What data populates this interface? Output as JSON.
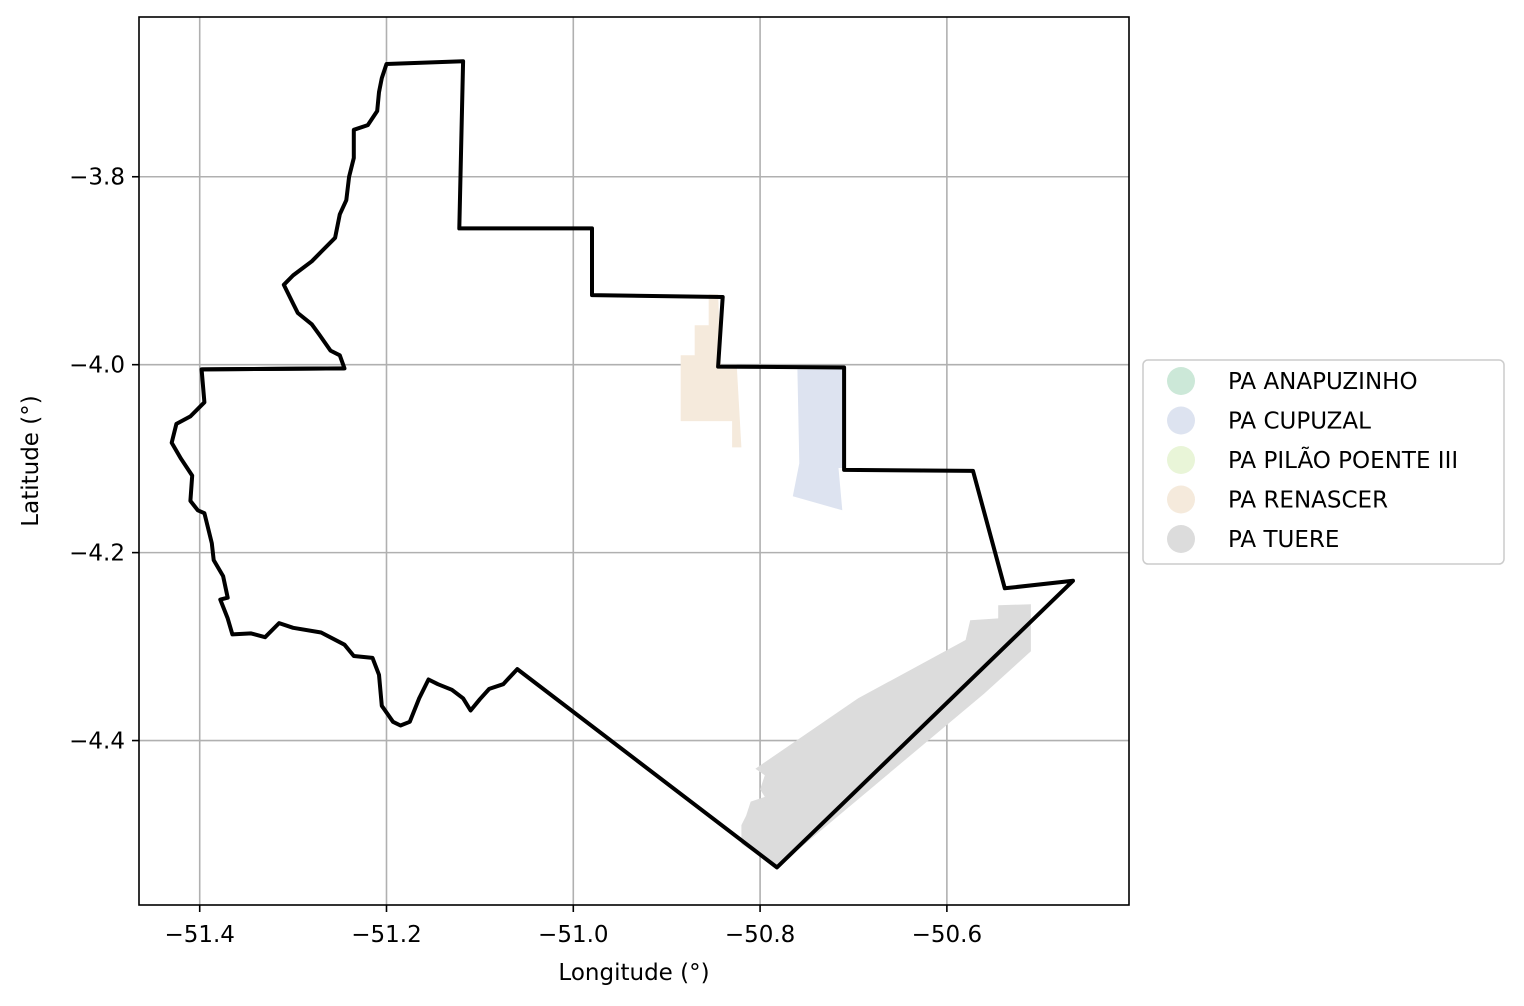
{
  "chart_data": {
    "type": "map",
    "xlabel": "Longitude (°)",
    "ylabel": "Latitude (°)",
    "xlim": [
      -51.465,
      -50.405
    ],
    "ylim": [
      -4.575,
      -3.63
    ],
    "grid": true,
    "x_ticks": [
      {
        "value": -51.4,
        "label": "−51.4"
      },
      {
        "value": -51.2,
        "label": "−51.2"
      },
      {
        "value": -51.0,
        "label": "−51.0"
      },
      {
        "value": -50.8,
        "label": "−50.8"
      },
      {
        "value": -50.6,
        "label": "−50.6"
      }
    ],
    "y_ticks": [
      {
        "value": -3.8,
        "label": "−3.8"
      },
      {
        "value": -4.0,
        "label": "−4.0"
      },
      {
        "value": -4.2,
        "label": "−4.2"
      },
      {
        "value": -4.4,
        "label": "−4.4"
      }
    ],
    "legend": {
      "placement": "center-right outside",
      "entries": [
        {
          "name": "PA ANAPUZINHO",
          "color": "#cce8d8"
        },
        {
          "name": "PA CUPUZAL",
          "color": "#dde3f0"
        },
        {
          "name": "PA PILÃO POENTE III",
          "color": "#e9f5d8"
        },
        {
          "name": "PA RENASCER",
          "color": "#f5eadc"
        },
        {
          "name": "PA TUERE",
          "color": "#dcdcdc"
        }
      ]
    },
    "regions": [
      {
        "name": "PA RENASCER",
        "color": "#f5eadc",
        "coords": [
          [
            -50.855,
            -3.925
          ],
          [
            -50.845,
            -3.925
          ],
          [
            -50.842,
            -4.0
          ],
          [
            -50.825,
            -4.0
          ],
          [
            -50.82,
            -4.088
          ],
          [
            -50.83,
            -4.088
          ],
          [
            -50.83,
            -4.06
          ],
          [
            -50.885,
            -4.06
          ],
          [
            -50.885,
            -3.99
          ],
          [
            -50.87,
            -3.99
          ],
          [
            -50.87,
            -3.958
          ],
          [
            -50.855,
            -3.958
          ]
        ]
      },
      {
        "name": "PA CUPUZAL",
        "color": "#dde3f0",
        "coords": [
          [
            -50.76,
            -4.005
          ],
          [
            -50.71,
            -4.005
          ],
          [
            -50.71,
            -4.11
          ],
          [
            -50.716,
            -4.11
          ],
          [
            -50.712,
            -4.155
          ],
          [
            -50.765,
            -4.14
          ],
          [
            -50.758,
            -4.105
          ]
        ]
      },
      {
        "name": "PA TUERE",
        "color": "#dcdcdc",
        "coords": [
          [
            -50.51,
            -4.255
          ],
          [
            -50.545,
            -4.256
          ],
          [
            -50.545,
            -4.27
          ],
          [
            -50.575,
            -4.272
          ],
          [
            -50.58,
            -4.293
          ],
          [
            -50.695,
            -4.355
          ],
          [
            -50.805,
            -4.43
          ],
          [
            -50.795,
            -4.437
          ],
          [
            -50.8,
            -4.452
          ],
          [
            -50.795,
            -4.46
          ],
          [
            -50.81,
            -4.465
          ],
          [
            -50.815,
            -4.48
          ],
          [
            -50.82,
            -4.49
          ],
          [
            -50.82,
            -4.51
          ],
          [
            -50.782,
            -4.535
          ],
          [
            -50.56,
            -4.35
          ],
          [
            -50.51,
            -4.305
          ]
        ]
      }
    ],
    "boundary": [
      [
        -51.2,
        -3.68
      ],
      [
        -51.118,
        -3.677
      ],
      [
        -51.122,
        -3.855
      ],
      [
        -50.98,
        -3.855
      ],
      [
        -50.98,
        -3.926
      ],
      [
        -50.84,
        -3.928
      ],
      [
        -50.845,
        -4.002
      ],
      [
        -50.71,
        -4.003
      ],
      [
        -50.71,
        -4.112
      ],
      [
        -50.572,
        -4.113
      ],
      [
        -50.538,
        -4.238
      ],
      [
        -50.465,
        -4.23
      ],
      [
        -50.782,
        -4.535
      ],
      [
        -51.06,
        -4.324
      ],
      [
        -51.075,
        -4.34
      ],
      [
        -51.09,
        -4.345
      ],
      [
        -51.1,
        -4.356
      ],
      [
        -51.11,
        -4.368
      ],
      [
        -51.118,
        -4.355
      ],
      [
        -51.13,
        -4.346
      ],
      [
        -51.145,
        -4.34
      ],
      [
        -51.155,
        -4.335
      ],
      [
        -51.165,
        -4.355
      ],
      [
        -51.175,
        -4.38
      ],
      [
        -51.185,
        -4.384
      ],
      [
        -51.193,
        -4.38
      ],
      [
        -51.205,
        -4.363
      ],
      [
        -51.208,
        -4.33
      ],
      [
        -51.215,
        -4.312
      ],
      [
        -51.235,
        -4.31
      ],
      [
        -51.245,
        -4.298
      ],
      [
        -51.27,
        -4.285
      ],
      [
        -51.3,
        -4.28
      ],
      [
        -51.315,
        -4.275
      ],
      [
        -51.33,
        -4.29
      ],
      [
        -51.345,
        -4.286
      ],
      [
        -51.365,
        -4.287
      ],
      [
        -51.37,
        -4.27
      ],
      [
        -51.378,
        -4.25
      ],
      [
        -51.37,
        -4.248
      ],
      [
        -51.375,
        -4.225
      ],
      [
        -51.385,
        -4.208
      ],
      [
        -51.387,
        -4.19
      ],
      [
        -51.395,
        -4.158
      ],
      [
        -51.402,
        -4.155
      ],
      [
        -51.41,
        -4.145
      ],
      [
        -51.408,
        -4.118
      ],
      [
        -51.42,
        -4.1
      ],
      [
        -51.43,
        -4.083
      ],
      [
        -51.425,
        -4.063
      ],
      [
        -51.41,
        -4.055
      ],
      [
        -51.395,
        -4.04
      ],
      [
        -51.398,
        -4.005
      ],
      [
        -51.245,
        -4.004
      ],
      [
        -51.25,
        -3.99
      ],
      [
        -51.26,
        -3.985
      ],
      [
        -51.272,
        -3.968
      ],
      [
        -51.28,
        -3.957
      ],
      [
        -51.295,
        -3.945
      ],
      [
        -51.3,
        -3.935
      ],
      [
        -51.31,
        -3.915
      ],
      [
        -51.3,
        -3.905
      ],
      [
        -51.28,
        -3.89
      ],
      [
        -51.27,
        -3.88
      ],
      [
        -51.255,
        -3.865
      ],
      [
        -51.25,
        -3.84
      ],
      [
        -51.243,
        -3.825
      ],
      [
        -51.24,
        -3.8
      ],
      [
        -51.235,
        -3.78
      ],
      [
        -51.235,
        -3.75
      ],
      [
        -51.22,
        -3.745
      ],
      [
        -51.21,
        -3.73
      ],
      [
        -51.208,
        -3.71
      ],
      [
        -51.205,
        -3.695
      ],
      [
        -51.2,
        -3.68
      ]
    ],
    "inner_line": [
      [
        -51.398,
        -4.005
      ],
      [
        -51.245,
        -4.004
      ]
    ]
  }
}
